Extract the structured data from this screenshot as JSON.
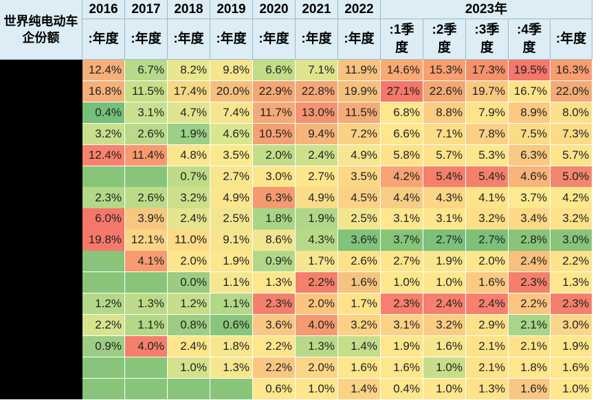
{
  "chart_data": {
    "type": "table",
    "title": "世界纯电动车企份额",
    "header_years": [
      "2016",
      "2017",
      "2018",
      "2019",
      "2020",
      "2021",
      "2022",
      "2023年"
    ],
    "sub_headers": [
      ":年度",
      ":年度",
      ":年度",
      ":年度",
      ":年度",
      ":年度",
      ":年度",
      ":1季度",
      ":2季度",
      ":3季度",
      ":4季度",
      ":年度"
    ],
    "rows": [
      [
        "12.4%",
        "6.7%",
        "8.2%",
        "9.8%",
        "6.6%",
        "7.1%",
        "11.9%",
        "14.6%",
        "15.3%",
        "17.3%",
        "19.5%",
        "16.3%"
      ],
      [
        "16.8%",
        "11.5%",
        "17.4%",
        "20.0%",
        "22.9%",
        "22.8%",
        "19.9%",
        "27.1%",
        "22.6%",
        "19.7%",
        "16.7%",
        "22.0%"
      ],
      [
        "0.4%",
        "3.1%",
        "4.7%",
        "7.4%",
        "11.7%",
        "13.0%",
        "11.5%",
        "6.8%",
        "8.8%",
        "7.9%",
        "8.9%",
        "8.0%"
      ],
      [
        "3.2%",
        "2.6%",
        "1.9%",
        "4.6%",
        "10.5%",
        "9.4%",
        "7.2%",
        "6.6%",
        "7.1%",
        "7.8%",
        "7.5%",
        "7.3%"
      ],
      [
        "12.4%",
        "11.4%",
        "4.8%",
        "3.5%",
        "2.0%",
        "2.4%",
        "4.9%",
        "5.8%",
        "5.7%",
        "5.3%",
        "6.3%",
        "5.7%"
      ],
      [
        "",
        "",
        "0.7%",
        "2.7%",
        "3.0%",
        "2.7%",
        "3.5%",
        "4.2%",
        "5.4%",
        "5.4%",
        "4.6%",
        "5.0%"
      ],
      [
        "2.3%",
        "2.6%",
        "3.2%",
        "4.9%",
        "6.3%",
        "4.9%",
        "4.5%",
        "4.4%",
        "4.3%",
        "4.1%",
        "3.7%",
        "4.2%"
      ],
      [
        "6.0%",
        "3.9%",
        "2.4%",
        "2.5%",
        "1.8%",
        "1.9%",
        "2.5%",
        "3.1%",
        "3.1%",
        "3.2%",
        "3.4%",
        "3.2%"
      ],
      [
        "19.8%",
        "12.1%",
        "11.0%",
        "9.1%",
        "8.6%",
        "4.3%",
        "3.6%",
        "3.7%",
        "2.7%",
        "2.7%",
        "2.8%",
        "3.0%"
      ],
      [
        "",
        "4.1%",
        "2.0%",
        "1.9%",
        "0.9%",
        "1.7%",
        "2.6%",
        "2.7%",
        "1.9%",
        "2.0%",
        "2.4%",
        "2.2%"
      ],
      [
        "",
        "",
        "0.0%",
        "1.1%",
        "1.3%",
        "2.2%",
        "1.6%",
        "1.0%",
        "1.0%",
        "1.6%",
        "2.3%",
        "1.3%"
      ],
      [
        "1.2%",
        "1.3%",
        "1.2%",
        "1.1%",
        "2.3%",
        "2.0%",
        "1.7%",
        "2.3%",
        "2.4%",
        "2.4%",
        "2.2%",
        "2.3%"
      ],
      [
        "2.2%",
        "1.1%",
        "0.8%",
        "0.6%",
        "3.6%",
        "4.0%",
        "3.2%",
        "3.1%",
        "3.2%",
        "2.9%",
        "2.1%",
        "3.0%"
      ],
      [
        "0.9%",
        "4.0%",
        "2.4%",
        "1.8%",
        "2.2%",
        "1.3%",
        "1.4%",
        "1.9%",
        "1.6%",
        "2.1%",
        "2.1%",
        "1.9%"
      ],
      [
        "",
        "",
        "1.0%",
        "1.3%",
        "2.2%",
        "2.0%",
        "1.6%",
        "1.6%",
        "1.0%",
        "2.1%",
        "1.8%",
        "1.6%"
      ],
      [
        "",
        "",
        "",
        "",
        "0.6%",
        "1.0%",
        "1.4%",
        "0.4%",
        "1.0%",
        "1.3%",
        "1.6%",
        "1.0%"
      ]
    ],
    "colors": [
      [
        "#f3b07a",
        "#b7d98a",
        "#e9e690",
        "#f5e58e",
        "#c2dd88",
        "#dfe38e",
        "#f6c27e",
        "#f8aa74",
        "#f79f70",
        "#f4916c",
        "#f3776a",
        "#f79d70"
      ],
      [
        "#f5b07a",
        "#c6df88",
        "#f5d885",
        "#f3c07e",
        "#f2a775",
        "#f2a775",
        "#f3c07e",
        "#f3786a",
        "#f2a775",
        "#f8c77f",
        "#fce38a",
        "#f2ab77"
      ],
      [
        "#76c07a",
        "#c9e08e",
        "#dfe58f",
        "#f5e58e",
        "#f4aa77",
        "#f39470",
        "#f4ab77",
        "#fde68c",
        "#fbcc82",
        "#fde389",
        "#fbc981",
        "#fcdf88"
      ],
      [
        "#c8e08e",
        "#b8da8a",
        "#9bd087",
        "#dae68f",
        "#f4a072",
        "#f5b47a",
        "#f9d285",
        "#fde68c",
        "#fcdc87",
        "#fbcf84",
        "#fcdb87",
        "#fcdb87"
      ],
      [
        "#f8826d",
        "#f8996f",
        "#f9e68d",
        "#fbe98d",
        "#c1dd88",
        "#cde18a",
        "#f6e68f",
        "#fde28a",
        "#fde28a",
        "#fde68c",
        "#f9c882",
        "#fce48b"
      ],
      [
        "#88c57a",
        "#88c57a",
        "#bedb88",
        "#f7e68e",
        "#fde58c",
        "#fde68c",
        "#fbd786",
        "#f7a373",
        "#f4806c",
        "#f4816c",
        "#f8b47a",
        "#f3866e"
      ],
      [
        "#b2d888",
        "#bcdb88",
        "#ccdf8b",
        "#f9e68d",
        "#f59a70",
        "#f9dd89",
        "#fbd285",
        "#f7cd83",
        "#fcd586",
        "#fde389",
        "#fbea8e",
        "#fce88d"
      ],
      [
        "#f3786a",
        "#f8c77f",
        "#e6e48f",
        "#f1e68f",
        "#a8d587",
        "#b0d788",
        "#f1e68f",
        "#fde68c",
        "#fde68c",
        "#fcdf88",
        "#fcd887",
        "#fde28a"
      ],
      [
        "#f6786a",
        "#fcd486",
        "#fcdb87",
        "#f5e58e",
        "#f1e68f",
        "#b8da88",
        "#80c37a",
        "#86c47a",
        "#7cc07a",
        "#7cc07a",
        "#88c47a",
        "#88c47a"
      ],
      [
        "#88c57a",
        "#f79c70",
        "#fde58c",
        "#fde68c",
        "#b3d788",
        "#f6e68f",
        "#fde28a",
        "#fde58c",
        "#f8e78e",
        "#fde68c",
        "#f8bf7e",
        "#fde28a"
      ],
      [
        "#88c57a",
        "#88c57a",
        "#9bcc82",
        "#f6e68f",
        "#fde68c",
        "#f4806c",
        "#f5c37e",
        "#fde68c",
        "#fde68c",
        "#fbc981",
        "#f4806c",
        "#fde68c"
      ],
      [
        "#b2d888",
        "#bcdb88",
        "#c6de8a",
        "#b2d888",
        "#f47f6c",
        "#fbc580",
        "#fde28a",
        "#f6806d",
        "#f6806d",
        "#f6806d",
        "#fbc580",
        "#f47f6c"
      ],
      [
        "#d8e38e",
        "#b3d888",
        "#9dcd82",
        "#89c57a",
        "#f9c782",
        "#f59a70",
        "#fbd184",
        "#fbd184",
        "#fbcc82",
        "#fde28a",
        "#a8d587",
        "#fbd687"
      ],
      [
        "#9dcd84",
        "#f4806c",
        "#fde68c",
        "#f7e68e",
        "#fde68c",
        "#b8da88",
        "#c6de8a",
        "#fde68c",
        "#f6e68f",
        "#fde28a",
        "#fde28a",
        "#fde68c"
      ],
      [
        "#88c57a",
        "#88c57a",
        "#d5e28d",
        "#f6e68f",
        "#f9c782",
        "#fbd687",
        "#fde68c",
        "#fde68c",
        "#c6de8a",
        "#fde28a",
        "#fde68c",
        "#fde68c"
      ],
      [
        "#88c57a",
        "#88c57a",
        "#88c57a",
        "#88c57a",
        "#fde68c",
        "#fde68c",
        "#fbd286",
        "#fde68c",
        "#fde68c",
        "#fde28a",
        "#f9c782",
        "#fde68c"
      ]
    ]
  }
}
